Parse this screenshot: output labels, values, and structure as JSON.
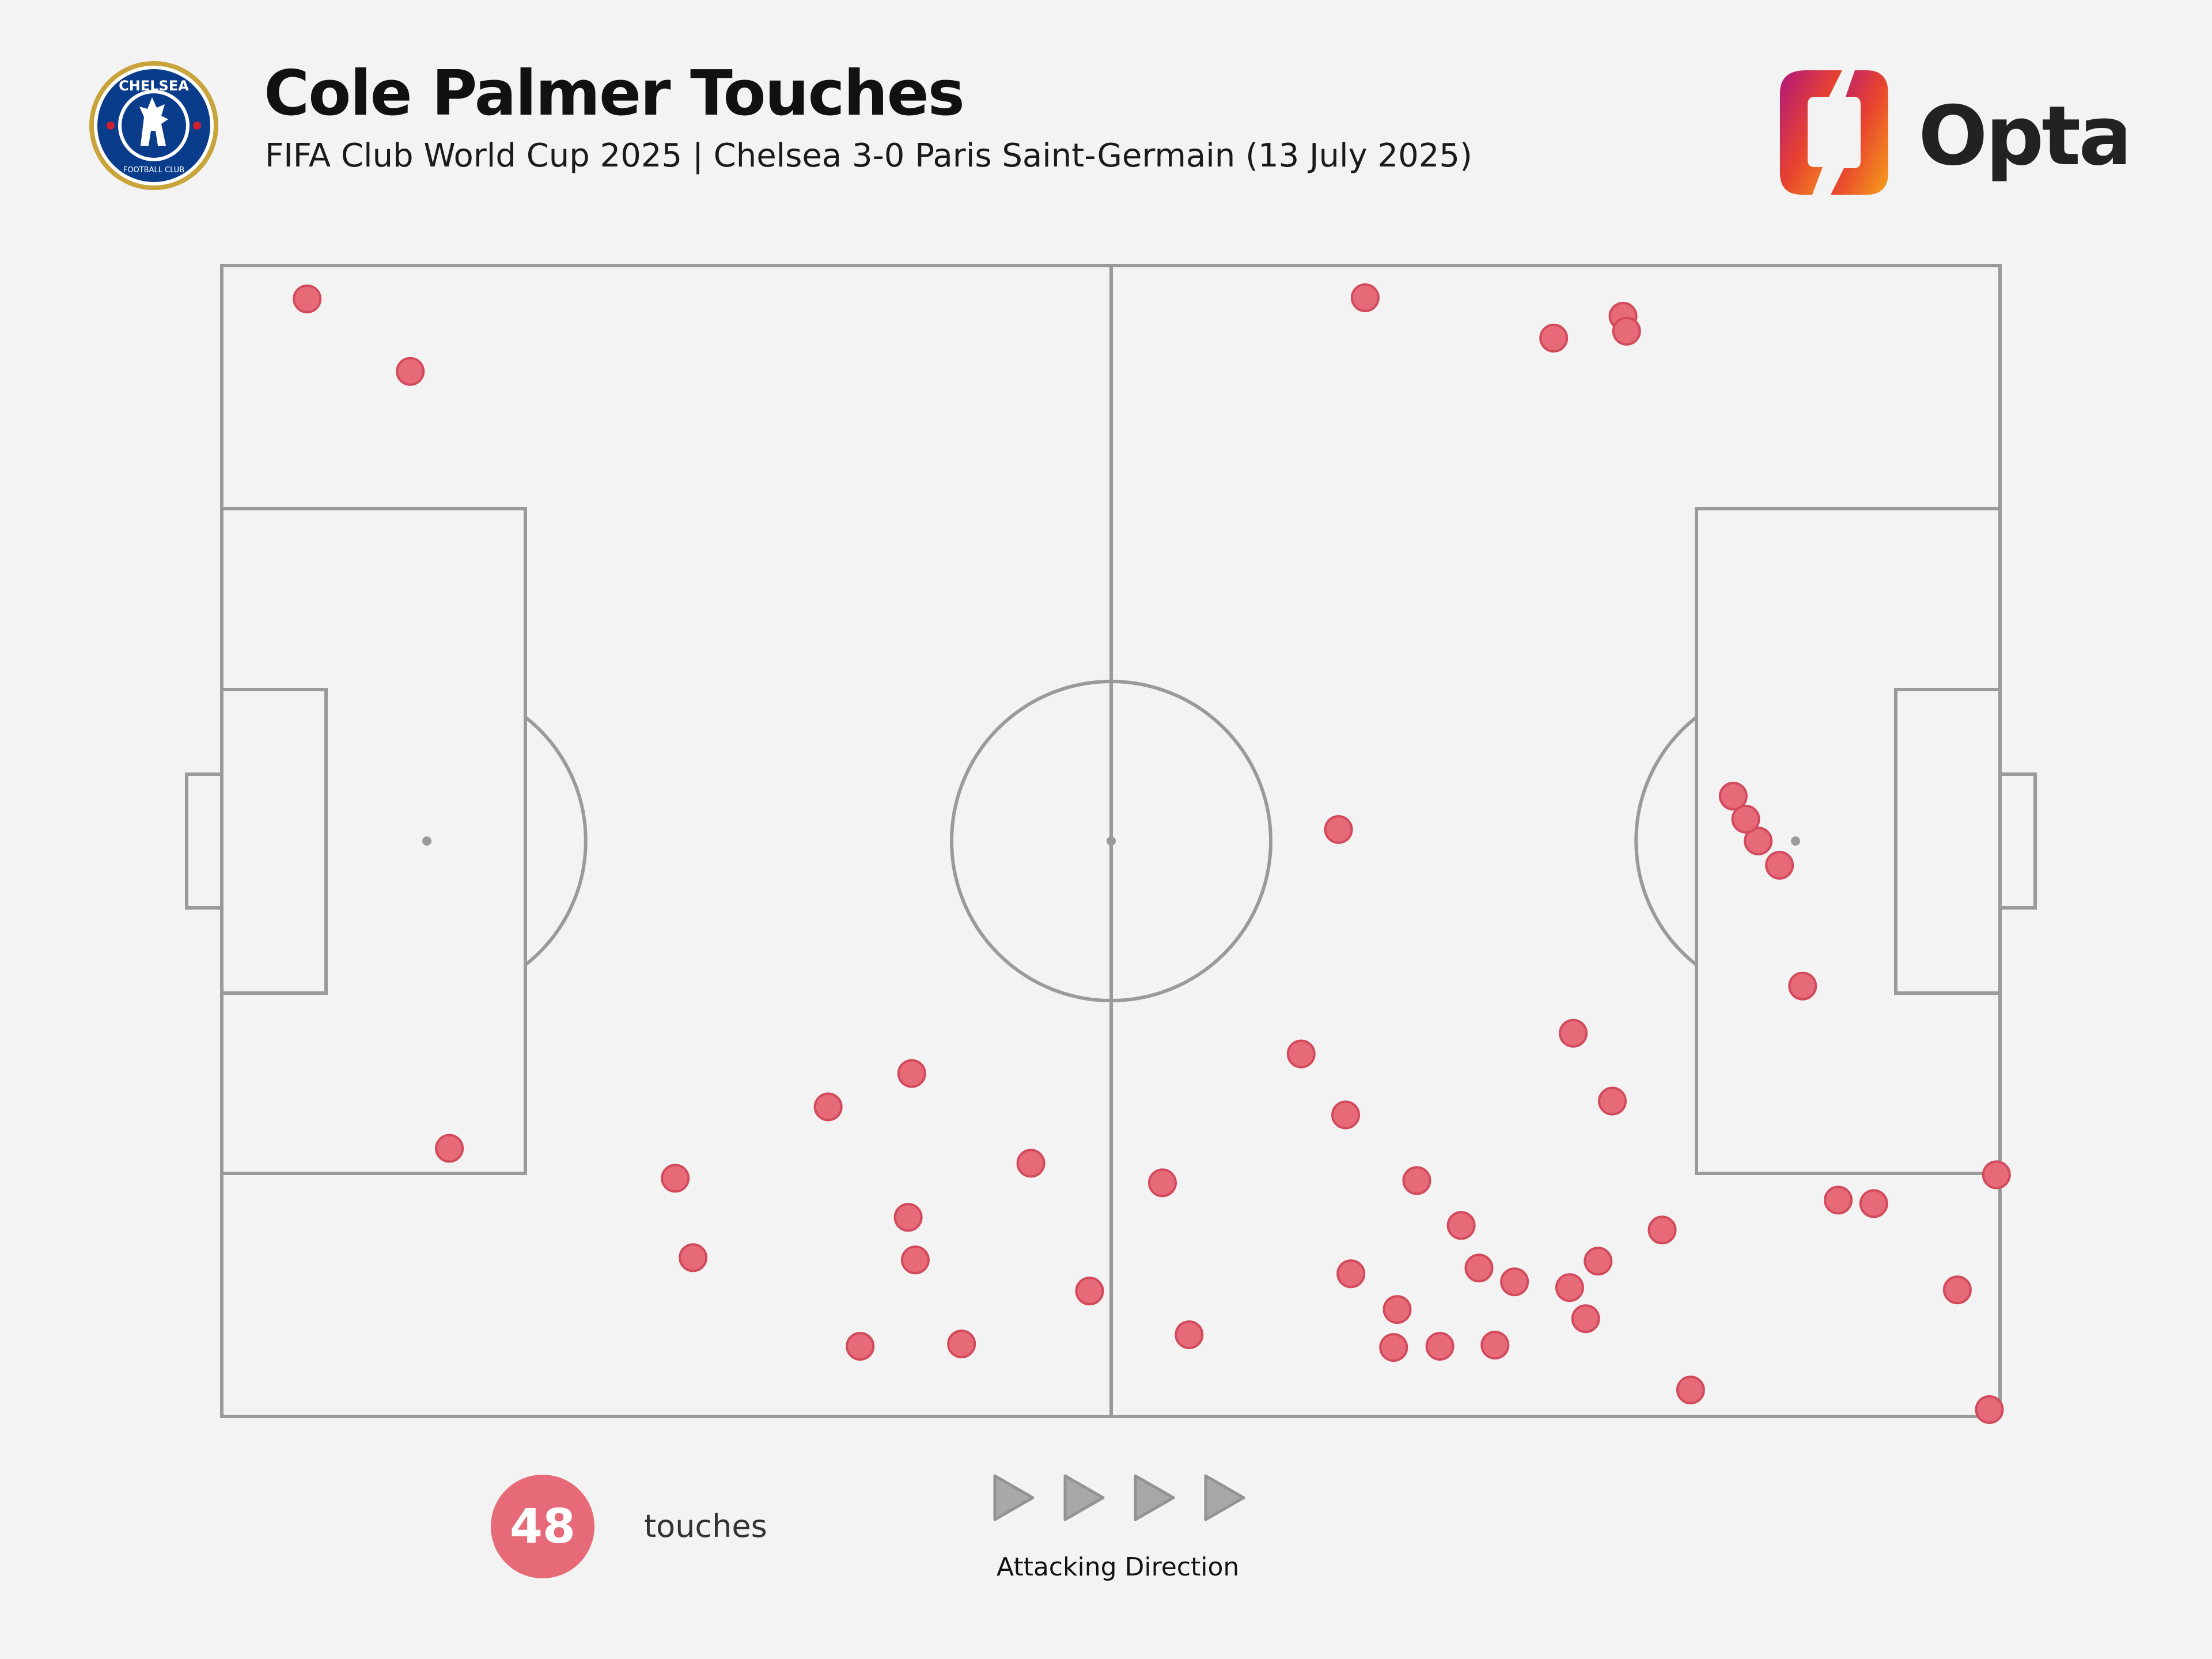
{
  "header": {
    "title": "Cole Palmer Touches",
    "subtitle": "FIFA Club World Cup 2025 | Chelsea 3-0 Paris Saint-Germain (13 July 2025)",
    "club_logo": {
      "icon": "chelsea-crest-icon",
      "text_top": "CHELSEA",
      "text_bottom": "FOOTBALL CLUB"
    },
    "brand_logo": {
      "icon": "opta-logo-icon",
      "text": "Opta"
    }
  },
  "legend": {
    "count": "48",
    "count_label": "touches",
    "direction_label": "Attacking Direction"
  },
  "colors": {
    "background": "#f3f3f3",
    "pitch_lines": "#9a9a9a",
    "touch_marker": "#e76a78",
    "touch_marker_stroke": "#d24a5c",
    "arrow": "#a8a8a8"
  },
  "chart_data": {
    "type": "scatter",
    "title": "Cole Palmer Touches",
    "subtitle": "FIFA Club World Cup 2025 | Chelsea 3-0 Paris Saint-Germain (13 July 2025)",
    "xlabel": "",
    "ylabel": "",
    "xlim": [
      0,
      100
    ],
    "ylim": [
      0,
      100
    ],
    "grid": false,
    "attacking_direction": "left-to-right",
    "series": [
      {
        "x": [
          4.8,
          10.6,
          12.8,
          25.5,
          26.5,
          34.1,
          35.9,
          38.8,
          38.6,
          41.6,
          39.0,
          45.5,
          48.8,
          52.9,
          54.4,
          62.8,
          60.7,
          64.3,
          63.2,
          63.5,
          65.9,
          66.1,
          67.2,
          68.5,
          70.7,
          69.7,
          71.6,
          78.8,
          72.7,
          74.9,
          76.7,
          76.0,
          77.4,
          75.8,
          78.2,
          79.0,
          81.0,
          82.6,
          85.0,
          86.4,
          87.6,
          85.7,
          88.9,
          90.9,
          92.9,
          97.6,
          99.4,
          99.8
        ],
        "y": [
          97.1,
          90.8,
          23.3,
          20.7,
          13.8,
          26.9,
          6.1,
          29.8,
          17.3,
          6.3,
          13.6,
          22.0,
          10.9,
          20.3,
          7.1,
          51.0,
          31.5,
          97.2,
          26.2,
          12.4,
          6.0,
          9.3,
          20.5,
          6.1,
          12.9,
          16.6,
          6.2,
          95.6,
          11.7,
          93.7,
          8.5,
          33.3,
          13.5,
          11.2,
          27.4,
          94.3,
          16.2,
          2.3,
          53.9,
          50.0,
          47.9,
          51.9,
          37.4,
          18.8,
          18.5,
          11.0,
          0.6,
          21.0
        ]
      }
    ]
  }
}
